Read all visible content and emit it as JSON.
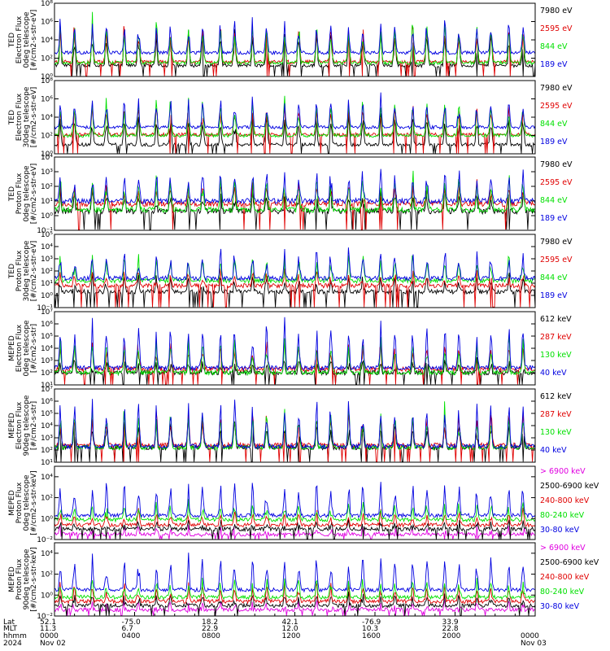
{
  "chart_data": [
    {
      "type": "line",
      "ylabel_lines": [
        "TED",
        "Electron Flux",
        "0deg telescope",
        "[#/cm2-s-str-eV]"
      ],
      "yscale": "log",
      "ylim_exp": [
        0,
        8
      ],
      "ytick_exps": [
        0,
        2,
        4,
        6,
        8
      ],
      "series": [
        {
          "name": "7980 eV",
          "color": "#000000",
          "base_exp": 1.2,
          "peak_exp": 5.5
        },
        {
          "name": "2595 eV",
          "color": "#e00000",
          "base_exp": 1.6,
          "peak_exp": 6.0
        },
        {
          "name": "844 eV",
          "color": "#00e000",
          "base_exp": 1.5,
          "peak_exp": 6.6
        },
        {
          "name": "189 eV",
          "color": "#0000e0",
          "base_exp": 2.6,
          "peak_exp": 6.4
        }
      ]
    },
    {
      "type": "line",
      "ylabel_lines": [
        "TED",
        "Electron Flux",
        "30deg telescope",
        "[#/cm2-s-str-eV]"
      ],
      "yscale": "log",
      "ylim_exp": [
        0,
        8
      ],
      "ytick_exps": [
        0,
        2,
        4,
        6,
        8
      ],
      "series": [
        {
          "name": "7980 eV",
          "color": "#000000",
          "base_exp": 1.0,
          "peak_exp": 4.6
        },
        {
          "name": "2595 eV",
          "color": "#e00000",
          "base_exp": 2.1,
          "peak_exp": 5.6
        },
        {
          "name": "844 eV",
          "color": "#00e000",
          "base_exp": 2.0,
          "peak_exp": 6.5
        },
        {
          "name": "189 eV",
          "color": "#0000e0",
          "base_exp": 2.9,
          "peak_exp": 6.2
        }
      ]
    },
    {
      "type": "line",
      "ylabel_lines": [
        "TED",
        "Proton Flux",
        "0deg telescope",
        "[#/cm2-s-str-eV]"
      ],
      "yscale": "log",
      "ylim_exp": [
        -1,
        4
      ],
      "ytick_exps": [
        -1,
        0,
        1,
        2,
        3,
        4
      ],
      "series": [
        {
          "name": "7980 eV",
          "color": "#000000",
          "base_exp": 0.3,
          "peak_exp": 1.8
        },
        {
          "name": "2595 eV",
          "color": "#e00000",
          "base_exp": 0.8,
          "peak_exp": 2.2
        },
        {
          "name": "844 eV",
          "color": "#00e000",
          "base_exp": 0.4,
          "peak_exp": 3.0
        },
        {
          "name": "189 eV",
          "color": "#0000e0",
          "base_exp": 1.0,
          "peak_exp": 3.2
        }
      ]
    },
    {
      "type": "line",
      "ylabel_lines": [
        "TED",
        "Proton Flux",
        "30deg telescope",
        "[#/cm2-s-str-eV]"
      ],
      "yscale": "log",
      "ylim_exp": [
        -1,
        5
      ],
      "ytick_exps": [
        -1,
        0,
        1,
        2,
        3,
        4,
        5
      ],
      "series": [
        {
          "name": "7980 eV",
          "color": "#000000",
          "base_exp": 0.3,
          "peak_exp": 1.5
        },
        {
          "name": "2595 eV",
          "color": "#e00000",
          "base_exp": 0.8,
          "peak_exp": 2.0
        },
        {
          "name": "844 eV",
          "color": "#00e000",
          "base_exp": 1.2,
          "peak_exp": 3.3
        },
        {
          "name": "189 eV",
          "color": "#0000e0",
          "base_exp": 1.4,
          "peak_exp": 3.8
        }
      ]
    },
    {
      "type": "line",
      "ylabel_lines": [
        "MEPED",
        "Electron Flux",
        "0deg telescope",
        "[#/cm2-s-str]"
      ],
      "yscale": "log",
      "ylim_exp": [
        1,
        7
      ],
      "ytick_exps": [
        1,
        2,
        3,
        4,
        5,
        6,
        7
      ],
      "series": [
        {
          "name": "612 keV",
          "color": "#000000",
          "base_exp": 2.0,
          "peak_exp": 3.0
        },
        {
          "name": "287 keV",
          "color": "#e00000",
          "base_exp": 2.3,
          "peak_exp": 4.8
        },
        {
          "name": "130 keV",
          "color": "#00e000",
          "base_exp": 2.0,
          "peak_exp": 5.0
        },
        {
          "name": "40 keV",
          "color": "#0000e0",
          "base_exp": 2.4,
          "peak_exp": 6.3
        }
      ]
    },
    {
      "type": "line",
      "ylabel_lines": [
        "MEPED",
        "Electron Flux",
        "90deg telescope",
        "[#/cm2-s-str]"
      ],
      "yscale": "log",
      "ylim_exp": [
        1,
        7
      ],
      "ytick_exps": [
        1,
        2,
        3,
        4,
        5,
        6,
        7
      ],
      "series": [
        {
          "name": "612 keV",
          "color": "#000000",
          "base_exp": 2.2,
          "peak_exp": 4.5
        },
        {
          "name": "287 keV",
          "color": "#e00000",
          "base_exp": 2.4,
          "peak_exp": 5.2
        },
        {
          "name": "130 keV",
          "color": "#00e000",
          "base_exp": 2.2,
          "peak_exp": 5.6
        },
        {
          "name": "40 keV",
          "color": "#0000e0",
          "base_exp": 2.3,
          "peak_exp": 6.4
        }
      ]
    },
    {
      "type": "line",
      "ylabel_lines": [
        "MEPED",
        "Proton Flux",
        "0deg telescope",
        "[#/cm2-s-str-keV]"
      ],
      "yscale": "log",
      "ylim_exp": [
        -2,
        5
      ],
      "ytick_exps": [
        -2,
        0,
        2,
        4
      ],
      "series": [
        {
          "name": "> 6900 keV",
          "color": "#e000e0",
          "base_exp": -1.5,
          "peak_exp": -1.0
        },
        {
          "name": "2500-6900 keV",
          "color": "#000000",
          "base_exp": -1.0,
          "peak_exp": -0.3
        },
        {
          "name": "240-800 keV",
          "color": "#e00000",
          "base_exp": -0.6,
          "peak_exp": 0.8
        },
        {
          "name": "80-240 keV",
          "color": "#00e000",
          "base_exp": -0.1,
          "peak_exp": 1.5
        },
        {
          "name": "30-80 keV",
          "color": "#0000e0",
          "base_exp": 0.3,
          "peak_exp": 3.7
        }
      ]
    },
    {
      "type": "line",
      "ylabel_lines": [
        "MEPED",
        "Proton Flux",
        "90deg telescope",
        "[#/cm2-s-str-keV]"
      ],
      "yscale": "log",
      "ylim_exp": [
        -2,
        5
      ],
      "ytick_exps": [
        -2,
        0,
        2,
        4
      ],
      "series": [
        {
          "name": "> 6900 keV",
          "color": "#e000e0",
          "base_exp": -1.4,
          "peak_exp": -0.9
        },
        {
          "name": "2500-6900 keV",
          "color": "#000000",
          "base_exp": -1.0,
          "peak_exp": 0.0
        },
        {
          "name": "240-800 keV",
          "color": "#e00000",
          "base_exp": -0.6,
          "peak_exp": 1.0
        },
        {
          "name": "80-240 keV",
          "color": "#00e000",
          "base_exp": -0.2,
          "peak_exp": 1.6
        },
        {
          "name": "30-80 keV",
          "color": "#0000e0",
          "base_exp": 0.5,
          "peak_exp": 3.9
        }
      ]
    }
  ],
  "time_axis": {
    "start": "2024-11-02 00:00",
    "end": "2024-11-03 00:00",
    "orbit_count": 15,
    "row_labels": [
      "Lat",
      "MLT",
      "hhmm",
      "2024"
    ],
    "ticks": [
      {
        "lat": "52.1",
        "mlt": "11.3",
        "hhmm": "0000",
        "date": "Nov 02"
      },
      {
        "lat": "-75.0",
        "mlt": "6.7",
        "hhmm": "0400",
        "date": ""
      },
      {
        "lat": "18.2",
        "mlt": "22.9",
        "hhmm": "0800",
        "date": ""
      },
      {
        "lat": "42.1",
        "mlt": "12.0",
        "hhmm": "1200",
        "date": ""
      },
      {
        "lat": "-76.9",
        "mlt": "10.3",
        "hhmm": "1600",
        "date": ""
      },
      {
        "lat": "33.9",
        "mlt": "22.8",
        "hhmm": "2000",
        "date": ""
      },
      {
        "lat": "",
        "mlt": "",
        "hhmm": "0000",
        "date": "Nov 03"
      }
    ]
  }
}
